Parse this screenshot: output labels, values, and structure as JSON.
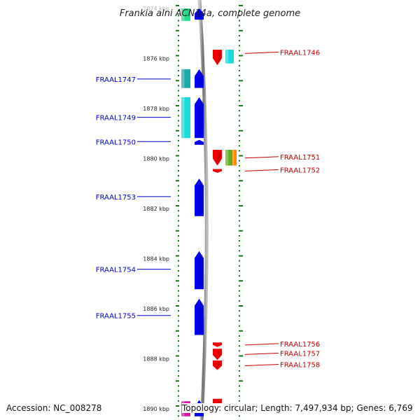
{
  "title": "Frankia alni ACN14a, complete genome",
  "footer": {
    "accession": "Accession: NC_008278",
    "topology": "Topology: circular; Length: 7,497,934 bp; Genes: 6,769"
  },
  "colors": {
    "forward": "#0000ee",
    "reverse": "#ee0000",
    "backbone": "#8a8a8a",
    "tick": "#117711",
    "label_left": "#0000cc",
    "label_right": "#cc0000",
    "cyan": "#19d9d9",
    "teal": "#1aaaaa",
    "green": "#22dd88",
    "olive": "#66aa22",
    "orange": "#ff8800",
    "magenta": "#dd11aa"
  },
  "axis": {
    "unit": "kbp",
    "scale_start_kbp": 1874,
    "scale_end_kbp": 1890,
    "labels": [
      {
        "kbp": 1874,
        "text": "1874 kbp"
      },
      {
        "kbp": 1876,
        "text": "1876 kbp"
      },
      {
        "kbp": 1878,
        "text": "1878 kbp"
      },
      {
        "kbp": 1880,
        "text": "1880 kbp"
      },
      {
        "kbp": 1882,
        "text": "1882 kbp"
      },
      {
        "kbp": 1884,
        "text": "1884 kbp"
      },
      {
        "kbp": 1886,
        "text": "1886 kbp"
      },
      {
        "kbp": 1888,
        "text": "1888 kbp"
      },
      {
        "kbp": 1890,
        "text": "1890 kbp"
      }
    ]
  },
  "genes": [
    {
      "id": "g0",
      "strand": "+",
      "start": 1874.0,
      "end": 1874.45,
      "color": "forward"
    },
    {
      "id": "g0b",
      "strand": "+",
      "start": 1874.0,
      "end": 1874.5,
      "color": "green",
      "track": "outer-left"
    },
    {
      "id": "g1746",
      "label": "FRAAL1746",
      "strand": "-",
      "start": 1875.65,
      "end": 1876.27,
      "color": "reverse",
      "label_kbp": 1875.8
    },
    {
      "id": "g1746b",
      "strand": "-",
      "start": 1875.65,
      "end": 1876.2,
      "color": "cyan",
      "track": "outer-right"
    },
    {
      "id": "g1747",
      "label": "FRAAL1747",
      "strand": "+",
      "start": 1876.43,
      "end": 1877.18,
      "color": "forward",
      "label_kbp": 1876.85
    },
    {
      "id": "g1747b",
      "strand": "+",
      "start": 1876.43,
      "end": 1877.18,
      "color": "teal",
      "track": "outer-left"
    },
    {
      "id": "g1749",
      "label": "FRAAL1749",
      "strand": "+",
      "start": 1877.55,
      "end": 1879.18,
      "color": "forward",
      "label_kbp": 1878.38
    },
    {
      "id": "g1749b",
      "strand": "+",
      "start": 1877.55,
      "end": 1879.18,
      "color": "cyan",
      "track": "outer-left"
    },
    {
      "id": "g1750",
      "label": "FRAAL1750",
      "strand": "+",
      "start": 1879.25,
      "end": 1879.45,
      "color": "forward",
      "label_kbp": 1879.35
    },
    {
      "id": "g1751",
      "label": "FRAAL1751",
      "strand": "-",
      "start": 1879.65,
      "end": 1880.28,
      "color": "reverse",
      "label_kbp": 1879.98
    },
    {
      "id": "g1751b",
      "strand": "-",
      "start": 1879.65,
      "end": 1880.28,
      "color": "olive",
      "track": "outer-right"
    },
    {
      "id": "g1751c",
      "strand": "-",
      "start": 1879.65,
      "end": 1880.28,
      "color": "orange",
      "track": "outer-right2"
    },
    {
      "id": "g1752",
      "label": "FRAAL1752",
      "strand": "-",
      "start": 1880.42,
      "end": 1880.57,
      "color": "reverse",
      "label_kbp": 1880.5
    },
    {
      "id": "g1753",
      "label": "FRAAL1753",
      "strand": "+",
      "start": 1880.8,
      "end": 1882.3,
      "color": "forward",
      "label_kbp": 1881.55
    },
    {
      "id": "g1754",
      "label": "FRAAL1754",
      "strand": "+",
      "start": 1883.7,
      "end": 1885.22,
      "color": "forward",
      "label_kbp": 1884.45
    },
    {
      "id": "g1755",
      "label": "FRAAL1755",
      "strand": "+",
      "start": 1885.6,
      "end": 1887.05,
      "color": "forward",
      "label_kbp": 1886.3
    },
    {
      "id": "g1756",
      "label": "FRAAL1756",
      "strand": "-",
      "start": 1887.35,
      "end": 1887.53,
      "color": "reverse",
      "label_kbp": 1887.45
    },
    {
      "id": "g1757",
      "label": "FRAAL1757",
      "strand": "-",
      "start": 1887.6,
      "end": 1888.05,
      "color": "reverse",
      "label_kbp": 1887.83
    },
    {
      "id": "g1758",
      "label": "FRAAL1758",
      "strand": "-",
      "start": 1888.07,
      "end": 1888.45,
      "color": "reverse",
      "label_kbp": 1888.28
    },
    {
      "id": "g1759",
      "strand": "-",
      "start": 1889.6,
      "end": 1889.9,
      "color": "reverse"
    },
    {
      "id": "g1760",
      "strand": "+",
      "start": 1889.65,
      "end": 1890.3,
      "color": "forward"
    },
    {
      "id": "g1760b",
      "strand": "+",
      "start": 1889.7,
      "end": 1890.3,
      "color": "magenta",
      "track": "outer-left"
    }
  ]
}
